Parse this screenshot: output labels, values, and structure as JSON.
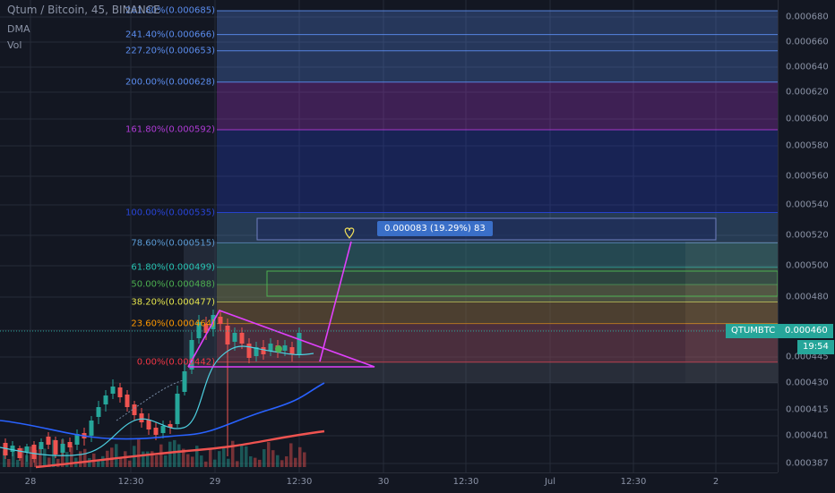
{
  "header": {
    "symbol_text": "Qtum / Bitcoin, 45, BINANCE"
  },
  "indicators": [
    {
      "label": "DMA"
    },
    {
      "label": "Vol"
    }
  ],
  "colors": {
    "background": "#131722",
    "up": "#26a69a",
    "down": "#ef5350",
    "accent": "#e040fb"
  },
  "fib_levels": [
    {
      "label": "261.80%(0.000685)",
      "price": 0.000685,
      "color": "#5b8def"
    },
    {
      "label": "241.40%(0.000666)",
      "price": 0.000666,
      "color": "#5b8def"
    },
    {
      "label": "227.20%(0.000653)",
      "price": 0.000653,
      "color": "#5b8def"
    },
    {
      "label": "200.00%(0.000628)",
      "price": 0.000628,
      "color": "#5b8def"
    },
    {
      "label": "161.80%(0.000592)",
      "price": 0.000592,
      "color": "#b03bd6"
    },
    {
      "label": "100.00%(0.000535)",
      "price": 0.000535,
      "color": "#2845d8"
    },
    {
      "label": "78.60%(0.000515)",
      "price": 0.000515,
      "color": "#5b9bd5"
    },
    {
      "label": "61.80%(0.000499)",
      "price": 0.000499,
      "color": "#27c4b3"
    },
    {
      "label": "50.00%(0.000488)",
      "price": 0.000488,
      "color": "#4caf50"
    },
    {
      "label": "38.20%(0.000477)",
      "price": 0.000477,
      "color": "#e5e54d"
    },
    {
      "label": "23.60%(0.000464)",
      "price": 0.000464,
      "color": "#ff9800"
    },
    {
      "label": "0.00%(0.000442)",
      "price": 0.000442,
      "color": "#f23645"
    }
  ],
  "measure": {
    "label": "0.000083 (19.29%) 83"
  },
  "price_axis": [
    "0.000680",
    "0.000660",
    "0.000640",
    "0.000620",
    "0.000600",
    "0.000580",
    "0.000560",
    "0.000540",
    "0.000520",
    "0.000500",
    "0.000480",
    "0.000460",
    "0.000445",
    "0.000430",
    "0.000415",
    "0.000401",
    "0.000387"
  ],
  "price_badge": {
    "symbol": "QTUMBTC",
    "price": "0.000460",
    "countdown": "19:54"
  },
  "time_axis": [
    "28",
    "12:30",
    "29",
    "12:30",
    "30",
    "12:30",
    "Jul",
    "12:30",
    "2"
  ]
}
